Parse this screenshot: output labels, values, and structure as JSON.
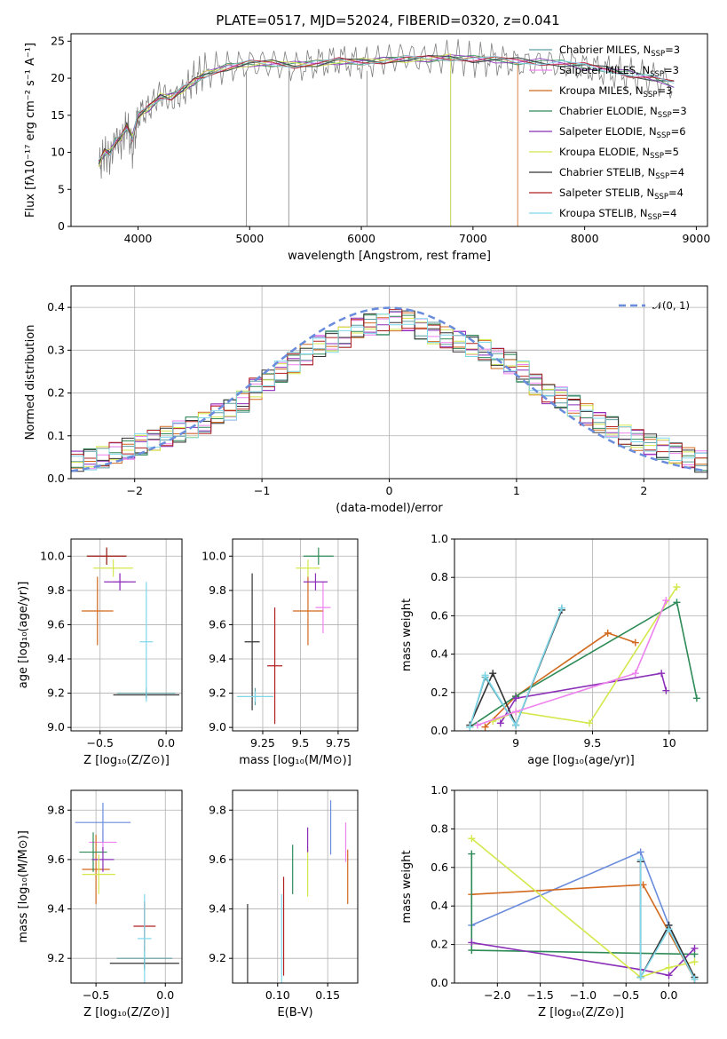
{
  "figure_title": "PLATE=0517, MJD=52024, FIBERID=0320, z=0.041",
  "models": [
    {
      "name": "Chabrier MILES, N",
      "sub": "SSP",
      "suffix": "=3",
      "color": "#5f9ea0"
    },
    {
      "name": "Salpeter MILES, N",
      "sub": "SSP",
      "suffix": "=3",
      "color": "#ee82ee"
    },
    {
      "name": "Kroupa MILES, N",
      "sub": "SSP",
      "suffix": "=3",
      "color": "#d2691e"
    },
    {
      "name": "Chabrier ELODIE, N",
      "sub": "SSP",
      "suffix": "=3",
      "color": "#2e8b57"
    },
    {
      "name": "Salpeter ELODIE, N",
      "sub": "SSP",
      "suffix": "=6",
      "color": "#8b2fb8"
    },
    {
      "name": "Kroupa ELODIE, N",
      "sub": "SSP",
      "suffix": "=5",
      "color": "#d4e84c"
    },
    {
      "name": "Chabrier STELIB, N",
      "sub": "SSP",
      "suffix": "=4",
      "color": "#333333"
    },
    {
      "name": "Salpeter STELIB, N",
      "sub": "SSP",
      "suffix": "=4",
      "color": "#b22222"
    },
    {
      "name": "Kroupa STELIB, N",
      "sub": "SSP",
      "suffix": "=4",
      "color": "#7fd7ea"
    }
  ],
  "chart_data": [
    {
      "id": "spectrum",
      "type": "line",
      "xlabel": "wavelength [Angstrom, rest frame]",
      "ylabel": "Flux [fλ10⁻¹⁷ erg cm⁻² s⁻¹ A⁻¹]",
      "xlim": [
        3400,
        9100
      ],
      "ylim": [
        0,
        26
      ],
      "xticks": [
        4000,
        5000,
        6000,
        7000,
        8000,
        9000
      ],
      "yticks": [
        0,
        5,
        10,
        15,
        20,
        25
      ],
      "observed_x": [
        3650,
        3700,
        3750,
        3800,
        3850,
        3900,
        3950,
        4000,
        4100,
        4200,
        4300,
        4400,
        4500,
        4600,
        4800,
        5000,
        5200,
        5400,
        5600,
        5800,
        6000,
        6200,
        6400,
        6600,
        6800,
        7000,
        7200,
        7400,
        7600,
        7800,
        8000,
        8200,
        8400,
        8600,
        8800
      ],
      "observed_y": [
        8,
        10,
        9,
        12,
        11,
        14,
        10,
        15,
        16,
        18,
        17,
        18,
        20,
        21,
        21.5,
        22,
        22,
        21.5,
        22,
        22.5,
        22,
        22.5,
        23,
        22.5,
        23,
        22.5,
        22.5,
        22,
        22,
        22,
        21.5,
        21,
        20.5,
        20,
        19
      ],
      "series_x": [
        3650,
        3700,
        3750,
        3800,
        3850,
        3900,
        3950,
        4000,
        4100,
        4200,
        4300,
        4400,
        4500,
        4600,
        4800,
        5000,
        5200,
        5400,
        5600,
        5800,
        6000,
        6200,
        6400,
        6600,
        6800,
        7000,
        7200,
        7400,
        7600,
        7800,
        8000,
        8200,
        8400,
        8600,
        8800
      ],
      "series_y": [
        8.5,
        10,
        10,
        11.5,
        12,
        13.5,
        12,
        15,
        16,
        17.5,
        17.5,
        18.5,
        19.5,
        20.5,
        21.5,
        22,
        22,
        21.8,
        22,
        22.3,
        22.2,
        22.4,
        22.6,
        22.6,
        22.8,
        22.6,
        22.5,
        22.3,
        22.2,
        22,
        21.6,
        21.2,
        20.6,
        20,
        19.2
      ],
      "cutoffs": [
        {
          "model": 2,
          "x": 7400
        },
        {
          "model": 5,
          "x": 6800
        }
      ]
    },
    {
      "id": "residuals",
      "type": "histogram",
      "xlabel": "(data-model)/error",
      "ylabel": "Normed distribution",
      "xlim": [
        -2.5,
        2.5
      ],
      "ylim": [
        0,
        0.45
      ],
      "xticks": [
        -2,
        -1,
        0,
        1,
        2
      ],
      "yticks": [
        0.0,
        0.1,
        0.2,
        0.3,
        0.4
      ],
      "legend": "𝒩(0, 1)",
      "bin_edges": [
        -2.5,
        -2.4,
        -2.3,
        -2.2,
        -2.1,
        -2.0,
        -1.9,
        -1.8,
        -1.7,
        -1.6,
        -1.5,
        -1.4,
        -1.3,
        -1.2,
        -1.1,
        -1.0,
        -0.9,
        -0.8,
        -0.7,
        -0.6,
        -0.5,
        -0.4,
        -0.3,
        -0.2,
        -0.1,
        0.0,
        0.1,
        0.2,
        0.3,
        0.4,
        0.5,
        0.6,
        0.7,
        0.8,
        0.9,
        1.0,
        1.1,
        1.2,
        1.3,
        1.4,
        1.5,
        1.6,
        1.7,
        1.8,
        1.9,
        2.0,
        2.1,
        2.2,
        2.3,
        2.4,
        2.5
      ],
      "values": [
        0.04,
        0.045,
        0.05,
        0.06,
        0.07,
        0.08,
        0.09,
        0.1,
        0.11,
        0.12,
        0.13,
        0.15,
        0.16,
        0.18,
        0.21,
        0.23,
        0.25,
        0.27,
        0.29,
        0.31,
        0.32,
        0.33,
        0.35,
        0.36,
        0.36,
        0.37,
        0.37,
        0.35,
        0.34,
        0.33,
        0.32,
        0.31,
        0.3,
        0.28,
        0.27,
        0.25,
        0.22,
        0.2,
        0.19,
        0.17,
        0.15,
        0.13,
        0.12,
        0.1,
        0.09,
        0.08,
        0.07,
        0.06,
        0.05,
        0.04
      ]
    },
    {
      "id": "age_vs_Z",
      "type": "scatter",
      "xlabel": "Z [log₁₀(Z/Z⊙)]",
      "ylabel": "age  [log₁₀(age/yr)]",
      "xlim": [
        -0.72,
        0.12
      ],
      "ylim": [
        8.98,
        10.1
      ],
      "xticks": [
        -0.5,
        0.0
      ],
      "xtick_labels": [
        "−0.5",
        "0.0"
      ],
      "yticks": [
        9.0,
        9.2,
        9.4,
        9.6,
        9.8,
        10.0
      ],
      "points": [
        {
          "m": 0,
          "x": -0.15,
          "y": 9.2,
          "xe": 0.22,
          "ye": 0.03
        },
        {
          "m": 1,
          "x": -0.35,
          "y": 9.85,
          "xe": 0.05,
          "ye": 0.05
        },
        {
          "m": 2,
          "x": -0.52,
          "y": 9.68,
          "xe": 0.12,
          "ye": 0.2
        },
        {
          "m": 3,
          "x": -0.45,
          "y": 10.0,
          "xe": 0.15,
          "ye": 0.05
        },
        {
          "m": 4,
          "x": -0.35,
          "y": 9.85,
          "xe": 0.12,
          "ye": 0.05
        },
        {
          "m": 5,
          "x": -0.4,
          "y": 9.93,
          "xe": 0.15,
          "ye": 0.05
        },
        {
          "m": 6,
          "x": -0.15,
          "y": 9.19,
          "xe": 0.25,
          "ye": 0.02
        },
        {
          "m": 7,
          "x": -0.45,
          "y": 10.0,
          "xe": 0.15,
          "ye": 0.05
        },
        {
          "m": 8,
          "x": -0.15,
          "y": 9.5,
          "xe": 0.05,
          "ye": 0.35
        }
      ]
    },
    {
      "id": "age_vs_mass",
      "type": "scatter",
      "xlabel": "mass [log₁₀(M/M⊙)]",
      "ylabel": "",
      "xlim": [
        9.05,
        9.88
      ],
      "ylim": [
        8.98,
        10.1
      ],
      "xticks": [
        9.25,
        9.5,
        9.75
      ],
      "yticks": [
        9.0,
        9.2,
        9.4,
        9.6,
        9.8,
        10.0
      ],
      "points": [
        {
          "m": 0,
          "x": 9.2,
          "y": 9.18,
          "xe": 0.12,
          "ye": 0.05
        },
        {
          "m": 1,
          "x": 9.65,
          "y": 9.7,
          "xe": 0.05,
          "ye": 0.15
        },
        {
          "m": 2,
          "x": 9.55,
          "y": 9.68,
          "xe": 0.1,
          "ye": 0.2
        },
        {
          "m": 3,
          "x": 9.62,
          "y": 10.0,
          "xe": 0.1,
          "ye": 0.05
        },
        {
          "m": 4,
          "x": 9.6,
          "y": 9.85,
          "xe": 0.08,
          "ye": 0.05
        },
        {
          "m": 5,
          "x": 9.55,
          "y": 9.93,
          "xe": 0.08,
          "ye": 0.05
        },
        {
          "m": 6,
          "x": 9.18,
          "y": 9.5,
          "xe": 0.05,
          "ye": 0.4
        },
        {
          "m": 7,
          "x": 9.33,
          "y": 9.36,
          "xe": 0.05,
          "ye": 0.34
        },
        {
          "m": 8,
          "x": 9.2,
          "y": 9.18,
          "xe": 0.12,
          "ye": 0.03
        }
      ]
    },
    {
      "id": "mass_weight_vs_age",
      "type": "line",
      "xlabel": "age  [log₁₀(age/yr)]",
      "ylabel": "mass weight",
      "xlim": [
        8.6,
        10.25
      ],
      "ylim": [
        0,
        1
      ],
      "xticks": [
        9.0,
        9.5,
        10.0
      ],
      "yticks": [
        0.0,
        0.2,
        0.4,
        0.6,
        0.8,
        1.0
      ],
      "series": [
        {
          "m": 0,
          "x": [
            8.7,
            8.8,
            9.0,
            9.3
          ],
          "y": [
            0.02,
            0.28,
            0.03,
            0.64
          ]
        },
        {
          "m": 2,
          "x": [
            8.8,
            9.0,
            9.6,
            9.78
          ],
          "y": [
            0.02,
            0.18,
            0.51,
            0.46
          ]
        },
        {
          "m": 3,
          "x": [
            8.7,
            9.0,
            10.05,
            10.18
          ],
          "y": [
            0.02,
            0.18,
            0.67,
            0.17
          ]
        },
        {
          "m": 4,
          "x": [
            8.9,
            9.0,
            9.95,
            9.98
          ],
          "y": [
            0.04,
            0.17,
            0.3,
            0.21
          ]
        },
        {
          "m": 5,
          "x": [
            8.85,
            9.0,
            9.48,
            10.05
          ],
          "y": [
            0.05,
            0.1,
            0.04,
            0.75
          ]
        },
        {
          "m": 6,
          "x": [
            8.7,
            8.85,
            9.0,
            9.3
          ],
          "y": [
            0.03,
            0.3,
            0.03,
            0.63
          ]
        },
        {
          "m": 8,
          "x": [
            8.7,
            8.8,
            9.0,
            9.3
          ],
          "y": [
            0.02,
            0.29,
            0.03,
            0.64
          ]
        },
        {
          "m": 1,
          "x": [
            8.75,
            9.0,
            9.78,
            9.98
          ],
          "y": [
            0.03,
            0.1,
            0.3,
            0.68
          ]
        }
      ]
    },
    {
      "id": "mass_vs_Z",
      "type": "scatter",
      "xlabel": "Z [log₁₀(Z/Z⊙)]",
      "ylabel": "mass [log₁₀(M/M⊙)]",
      "xlim": [
        -0.68,
        0.12
      ],
      "ylim": [
        9.1,
        9.88
      ],
      "xticks": [
        -0.5,
        0.0
      ],
      "xtick_labels": [
        "−0.5",
        "0.0"
      ],
      "yticks": [
        9.2,
        9.4,
        9.6,
        9.8
      ],
      "points": [
        {
          "m": 0,
          "x": -0.15,
          "y": 9.2,
          "xe": 0.2,
          "ye": 0.05
        },
        {
          "m": 1,
          "x": -0.45,
          "y": 9.67,
          "xe": 0.1,
          "ye": 0.05
        },
        {
          "m": 2,
          "x": -0.5,
          "y": 9.56,
          "xe": 0.1,
          "ye": 0.14
        },
        {
          "m": 3,
          "x": -0.52,
          "y": 9.63,
          "xe": 0.1,
          "ye": 0.08
        },
        {
          "m": 4,
          "x": -0.45,
          "y": 9.6,
          "xe": 0.08,
          "ye": 0.05
        },
        {
          "m": 5,
          "x": -0.48,
          "y": 9.54,
          "xe": 0.12,
          "ye": 0.08
        },
        {
          "m": 6,
          "x": -0.15,
          "y": 9.18,
          "xe": 0.25,
          "ye": 0.02
        },
        {
          "m": 7,
          "x": -0.15,
          "y": 9.33,
          "xe": 0.08,
          "ye": 0.1
        },
        {
          "m": 8,
          "x": -0.15,
          "y": 9.28,
          "xe": 0.05,
          "ye": 0.18
        }
      ],
      "extra": {
        "m": 0,
        "x": -0.45,
        "y": 9.75,
        "xe": 0.2,
        "ye": 0.08,
        "color": "#6a8cdc"
      }
    },
    {
      "id": "mass_vs_ebv",
      "type": "scatter",
      "xlabel": "E(B-V)",
      "ylabel": "",
      "xlim": [
        0.055,
        0.18
      ],
      "ylim": [
        9.1,
        9.88
      ],
      "xticks": [
        0.1,
        0.15
      ],
      "xtick_labels": [
        "0.10",
        "0.15"
      ],
      "yticks": [
        9.2,
        9.4,
        9.6,
        9.8
      ],
      "points": [
        {
          "m": 6,
          "x": 0.07,
          "y": 9.26,
          "ye": 0.16
        },
        {
          "m": 8,
          "x": 0.104,
          "y": 9.28,
          "ye": 0.18
        },
        {
          "m": 7,
          "x": 0.106,
          "y": 9.33,
          "ye": 0.2
        },
        {
          "m": 3,
          "x": 0.115,
          "y": 9.56,
          "ye": 0.1
        },
        {
          "m": 5,
          "x": 0.13,
          "y": 9.55,
          "ye": 0.1
        },
        {
          "m": 4,
          "x": 0.13,
          "y": 9.68,
          "ye": 0.05
        },
        {
          "m": 0,
          "x": 0.153,
          "y": 9.73,
          "ye": 0.11,
          "color": "#6a8cdc"
        },
        {
          "m": 1,
          "x": 0.168,
          "y": 9.67,
          "ye": 0.08
        },
        {
          "m": 2,
          "x": 0.17,
          "y": 9.53,
          "ye": 0.11
        }
      ]
    },
    {
      "id": "mass_weight_vs_Z",
      "type": "line",
      "xlabel": "Z [log₁₀(Z/Z⊙)]",
      "ylabel": "mass weight",
      "xlim": [
        -2.5,
        0.45
      ],
      "ylim": [
        0,
        1
      ],
      "xticks": [
        -2.0,
        -1.5,
        -1.0,
        -0.5,
        0.0
      ],
      "xtick_labels": [
        "−2.0",
        "−1.5",
        "−1.0",
        "−0.5",
        "0.0"
      ],
      "yticks": [
        0.0,
        0.2,
        0.4,
        0.6,
        0.8,
        1.0
      ],
      "series": [
        {
          "m": 0,
          "x": [
            -2.3,
            -0.33,
            0.0,
            0.3
          ],
          "y": [
            0.3,
            0.68,
            0.3,
            0.02
          ],
          "color": "#6a8cdc"
        },
        {
          "m": 2,
          "x": [
            -2.3,
            -0.3,
            0.3
          ],
          "y": [
            0.46,
            0.51,
            0.02
          ]
        },
        {
          "m": 3,
          "x": [
            -2.3,
            -2.3,
            0.3
          ],
          "y": [
            0.67,
            0.17,
            0.15
          ]
        },
        {
          "m": 4,
          "x": [
            -2.3,
            -0.33,
            0.0,
            0.3
          ],
          "y": [
            0.21,
            0.07,
            0.04,
            0.18
          ]
        },
        {
          "m": 5,
          "x": [
            -2.3,
            -0.33,
            0.0,
            0.3
          ],
          "y": [
            0.75,
            0.03,
            0.08,
            0.11
          ]
        },
        {
          "m": 6,
          "x": [
            -0.33,
            -0.33,
            0.0,
            0.3
          ],
          "y": [
            0.63,
            0.03,
            0.3,
            0.03
          ]
        },
        {
          "m": 8,
          "x": [
            -0.33,
            -0.33,
            0.0,
            0.3
          ],
          "y": [
            0.64,
            0.03,
            0.28,
            0.02
          ]
        }
      ]
    }
  ]
}
